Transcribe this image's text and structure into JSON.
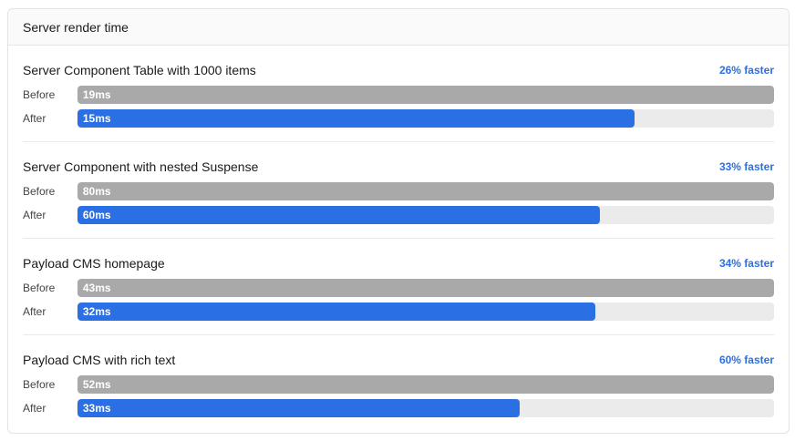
{
  "header": {
    "title": "Server render time"
  },
  "labels": {
    "before": "Before",
    "after": "After"
  },
  "colors": {
    "before": "#a9a9a9",
    "after": "#2b6fe4",
    "delta": "#2b6fe4"
  },
  "chart_data": {
    "type": "bar",
    "orientation": "horizontal",
    "title": "Server render time",
    "unit": "ms",
    "series": [
      {
        "name": "Before",
        "values": [
          19,
          80,
          43,
          52
        ]
      },
      {
        "name": "After",
        "values": [
          15,
          60,
          32,
          33
        ]
      }
    ],
    "benchmarks": [
      {
        "name": "Server Component Table with 1000 items",
        "delta": "26% faster",
        "before_label": "19ms",
        "after_label": "15ms",
        "before": 19,
        "after": 15,
        "before_fraction": 1.0,
        "after_fraction": 0.8
      },
      {
        "name": "Server Component with nested Suspense",
        "delta": "33% faster",
        "before_label": "80ms",
        "after_label": "60ms",
        "before": 80,
        "after": 60,
        "before_fraction": 1.0,
        "after_fraction": 0.75
      },
      {
        "name": "Payload CMS homepage",
        "delta": "34% faster",
        "before_label": "43ms",
        "after_label": "32ms",
        "before": 43,
        "after": 32,
        "before_fraction": 1.0,
        "after_fraction": 0.744
      },
      {
        "name": "Payload CMS with rich text",
        "delta": "60% faster",
        "before_label": "52ms",
        "after_label": "33ms",
        "before": 52,
        "after": 33,
        "before_fraction": 1.0,
        "after_fraction": 0.635
      }
    ]
  }
}
